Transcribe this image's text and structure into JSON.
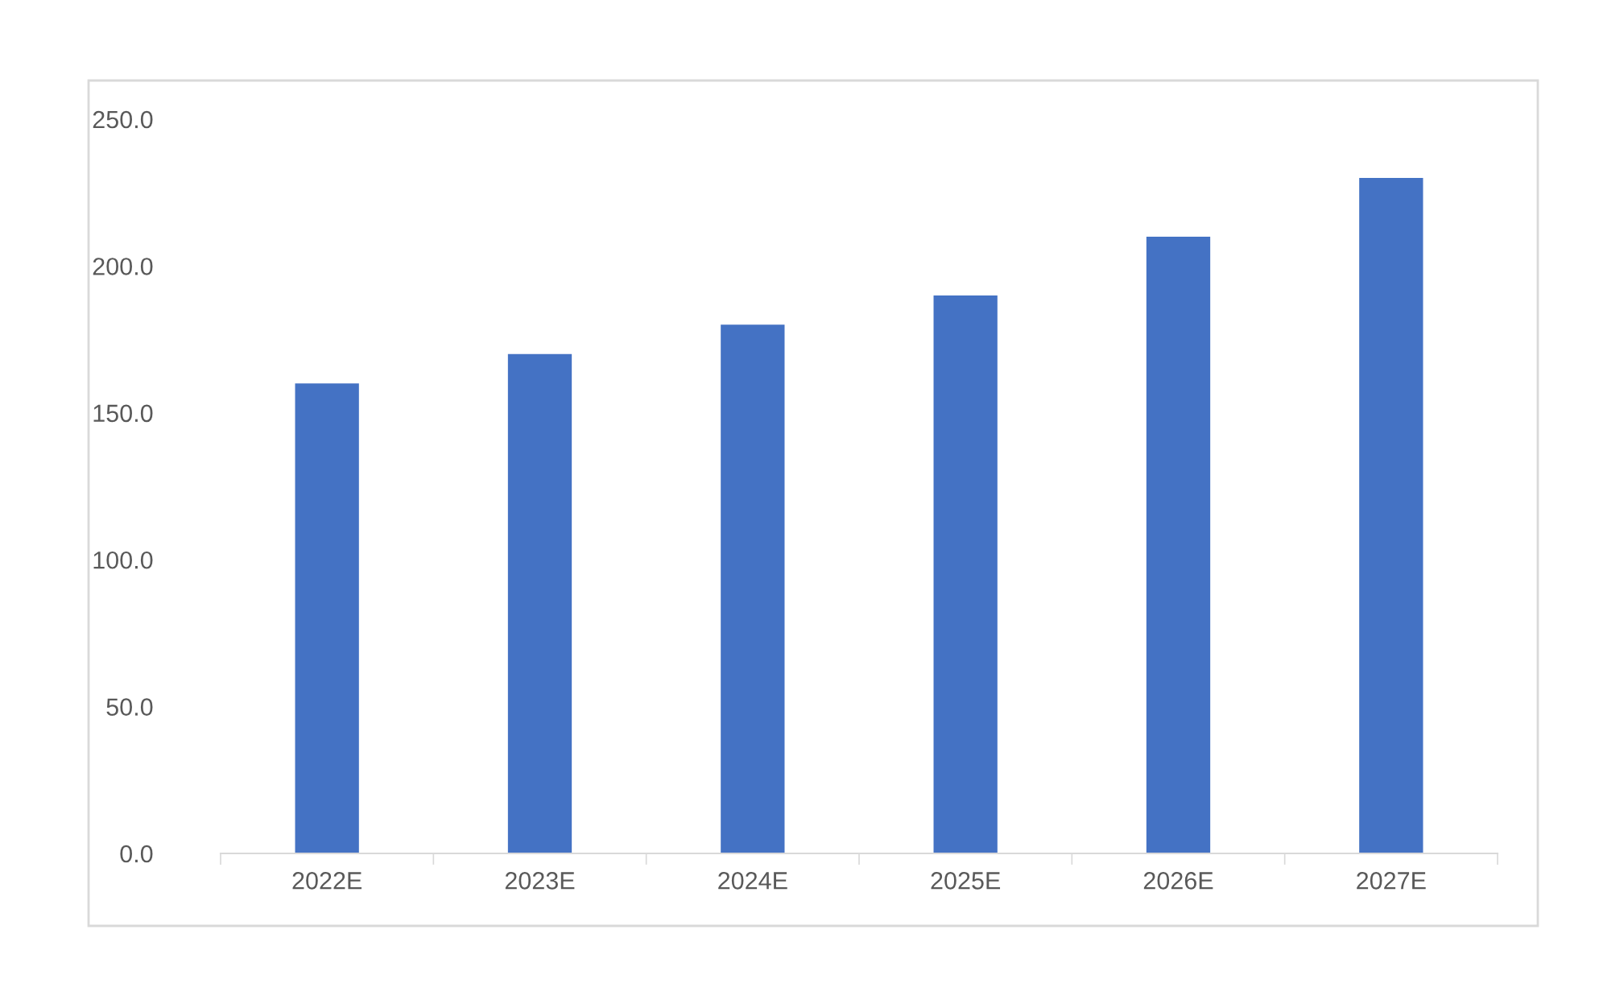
{
  "chart_data": {
    "type": "bar",
    "categories": [
      "2022E",
      "2023E",
      "2024E",
      "2025E",
      "2026E",
      "2027E"
    ],
    "values": [
      160,
      170,
      180,
      190,
      210,
      230
    ],
    "color": "#4472c4",
    "ylim": [
      0,
      250
    ],
    "yticks": [
      {
        "value": 0,
        "label": "0.0"
      },
      {
        "value": 50,
        "label": "50.0"
      },
      {
        "value": 100,
        "label": "100.0"
      },
      {
        "value": 150,
        "label": "150.0"
      },
      {
        "value": 200,
        "label": "200.0"
      },
      {
        "value": 250,
        "label": "250.0"
      }
    ],
    "grid": false
  }
}
